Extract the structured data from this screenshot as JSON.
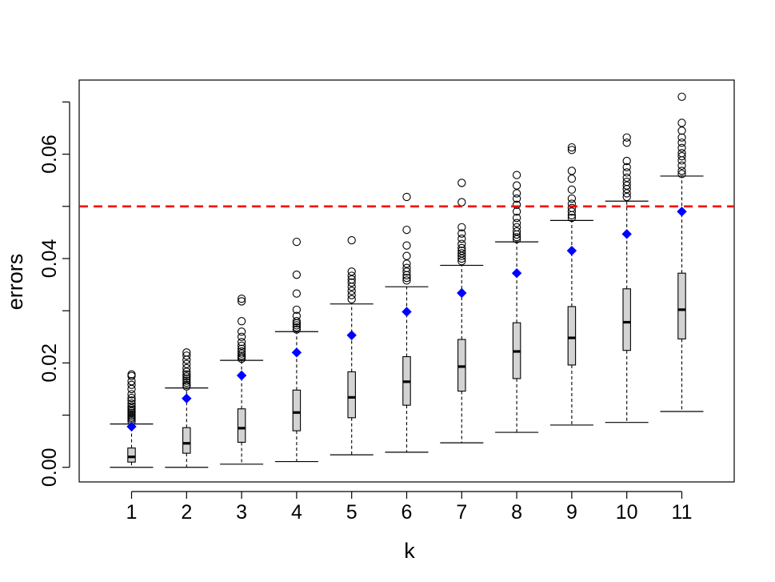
{
  "chart_data": {
    "type": "boxplot",
    "title": "",
    "xlabel": "k",
    "ylabel": "errors",
    "ylim": [
      -0.0028,
      0.0742
    ],
    "y_ticks": [
      0.0,
      0.02,
      0.04,
      0.06
    ],
    "y_tick_labels": [
      "0.00",
      "0.02",
      "0.04",
      "0.06"
    ],
    "y_minor_ticks": [
      0.01,
      0.03,
      0.05,
      0.07
    ],
    "categories": [
      "1",
      "2",
      "3",
      "4",
      "5",
      "6",
      "7",
      "8",
      "9",
      "10",
      "11"
    ],
    "reference_line": {
      "value": 0.05,
      "color": "#ff0000",
      "style": "dashed"
    },
    "mean_marker_color": "#0000ff",
    "box_fill": "#d3d3d3",
    "boxes": [
      {
        "k": 1,
        "whisker_low": 0.0,
        "q1": 0.001,
        "median": 0.002,
        "q3": 0.0037,
        "whisker_high": 0.0083,
        "mean": 0.0078,
        "outliers": [
          0.0088,
          0.0092,
          0.0095,
          0.0098,
          0.0101,
          0.0104,
          0.0107,
          0.011,
          0.0113,
          0.0117,
          0.0122,
          0.0128,
          0.0133,
          0.014,
          0.015,
          0.0158,
          0.0165,
          0.0175,
          0.0178
        ]
      },
      {
        "k": 2,
        "whisker_low": 0.0,
        "q1": 0.0027,
        "median": 0.0046,
        "q3": 0.0076,
        "whisker_high": 0.0152,
        "mean": 0.0132,
        "outliers": [
          0.0155,
          0.0158,
          0.0162,
          0.0166,
          0.017,
          0.0174,
          0.0178,
          0.0183,
          0.019,
          0.0198,
          0.0206,
          0.0214,
          0.022
        ]
      },
      {
        "k": 3,
        "whisker_low": 0.0006,
        "q1": 0.0048,
        "median": 0.0075,
        "q3": 0.0112,
        "whisker_high": 0.0205,
        "mean": 0.0176,
        "outliers": [
          0.0208,
          0.0211,
          0.0214,
          0.0218,
          0.0222,
          0.0227,
          0.0233,
          0.024,
          0.025,
          0.026,
          0.028,
          0.0318,
          0.0323
        ]
      },
      {
        "k": 4,
        "whisker_low": 0.0011,
        "q1": 0.007,
        "median": 0.0105,
        "q3": 0.0148,
        "whisker_high": 0.026,
        "mean": 0.022,
        "outliers": [
          0.0264,
          0.0268,
          0.0272,
          0.0276,
          0.028,
          0.029,
          0.0302,
          0.0333,
          0.0369,
          0.0432
        ]
      },
      {
        "k": 5,
        "whisker_low": 0.0024,
        "q1": 0.0095,
        "median": 0.0134,
        "q3": 0.0183,
        "whisker_high": 0.0313,
        "mean": 0.0253,
        "outliers": [
          0.0322,
          0.033,
          0.0338,
          0.0346,
          0.0354,
          0.036,
          0.0367,
          0.0375,
          0.0435
        ]
      },
      {
        "k": 6,
        "whisker_low": 0.0029,
        "q1": 0.0119,
        "median": 0.0164,
        "q3": 0.0212,
        "whisker_high": 0.0346,
        "mean": 0.0298,
        "outliers": [
          0.0358,
          0.0363,
          0.0368,
          0.0375,
          0.0382,
          0.039,
          0.0405,
          0.0425,
          0.0455,
          0.0518
        ]
      },
      {
        "k": 7,
        "whisker_low": 0.0047,
        "q1": 0.0146,
        "median": 0.0193,
        "q3": 0.0245,
        "whisker_high": 0.0387,
        "mean": 0.0334,
        "outliers": [
          0.0395,
          0.04,
          0.0405,
          0.041,
          0.0415,
          0.042,
          0.0428,
          0.0438,
          0.0448,
          0.046,
          0.0508,
          0.0545
        ]
      },
      {
        "k": 8,
        "whisker_low": 0.0067,
        "q1": 0.017,
        "median": 0.0222,
        "q3": 0.0277,
        "whisker_high": 0.0432,
        "mean": 0.0372,
        "outliers": [
          0.0437,
          0.0441,
          0.0446,
          0.0452,
          0.046,
          0.0468,
          0.0478,
          0.049,
          0.0503,
          0.0515,
          0.0525,
          0.054,
          0.056
        ]
      },
      {
        "k": 9,
        "whisker_low": 0.0081,
        "q1": 0.0196,
        "median": 0.0248,
        "q3": 0.0308,
        "whisker_high": 0.0473,
        "mean": 0.0415,
        "outliers": [
          0.0478,
          0.0483,
          0.049,
          0.0497,
          0.0505,
          0.0515,
          0.0532,
          0.0553,
          0.0568,
          0.0608,
          0.0613
        ]
      },
      {
        "k": 10,
        "whisker_low": 0.0086,
        "q1": 0.0224,
        "median": 0.0278,
        "q3": 0.0342,
        "whisker_high": 0.051,
        "mean": 0.0447,
        "outliers": [
          0.0518,
          0.0525,
          0.0533,
          0.054,
          0.0547,
          0.0555,
          0.0565,
          0.0575,
          0.0587,
          0.0622,
          0.0632
        ]
      },
      {
        "k": 11,
        "whisker_low": 0.0107,
        "q1": 0.0246,
        "median": 0.0302,
        "q3": 0.0372,
        "whisker_high": 0.0558,
        "mean": 0.049,
        "outliers": [
          0.0562,
          0.0568,
          0.0578,
          0.0588,
          0.0596,
          0.0602,
          0.0612,
          0.0622,
          0.0632,
          0.0645,
          0.066,
          0.071
        ]
      }
    ]
  }
}
